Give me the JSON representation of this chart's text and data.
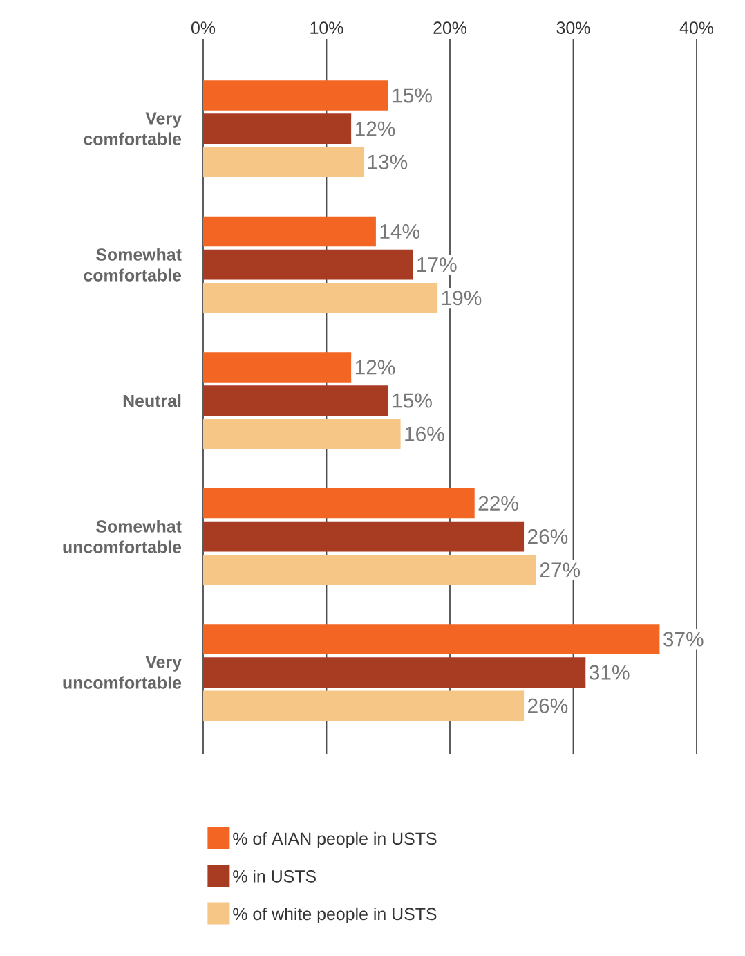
{
  "chart_data": {
    "type": "bar",
    "orientation": "horizontal",
    "categories": [
      "Very comfortable",
      "Somewhat comfortable",
      "Neutral",
      "Somewhat uncomfortable",
      "Very uncomfortable"
    ],
    "series": [
      {
        "name": "% of AIAN people in USTS",
        "color": "#f26522",
        "values": [
          15,
          14,
          12,
          22,
          37
        ],
        "value_labels": [
          "15%",
          "14%",
          "12%",
          "22%",
          "37%"
        ]
      },
      {
        "name": "% in USTS",
        "color": "#a83c23",
        "values": [
          12,
          17,
          15,
          26,
          31
        ],
        "value_labels": [
          "12%",
          "17%",
          "15%",
          "26%",
          "31%"
        ]
      },
      {
        "name": "% of white people in USTS",
        "color": "#f5c685",
        "values": [
          13,
          19,
          16,
          27,
          26
        ],
        "value_labels": [
          "13%",
          "19%",
          "16%",
          "27%",
          "26%"
        ]
      }
    ],
    "xlim": [
      0,
      40
    ],
    "xticks": [
      {
        "value": 0,
        "label": "0%"
      },
      {
        "value": 10,
        "label": "10%"
      },
      {
        "value": 20,
        "label": "20%"
      },
      {
        "value": 30,
        "label": "30%"
      },
      {
        "value": 40,
        "label": "40%"
      }
    ],
    "grid": "x",
    "legend": "bottom"
  }
}
